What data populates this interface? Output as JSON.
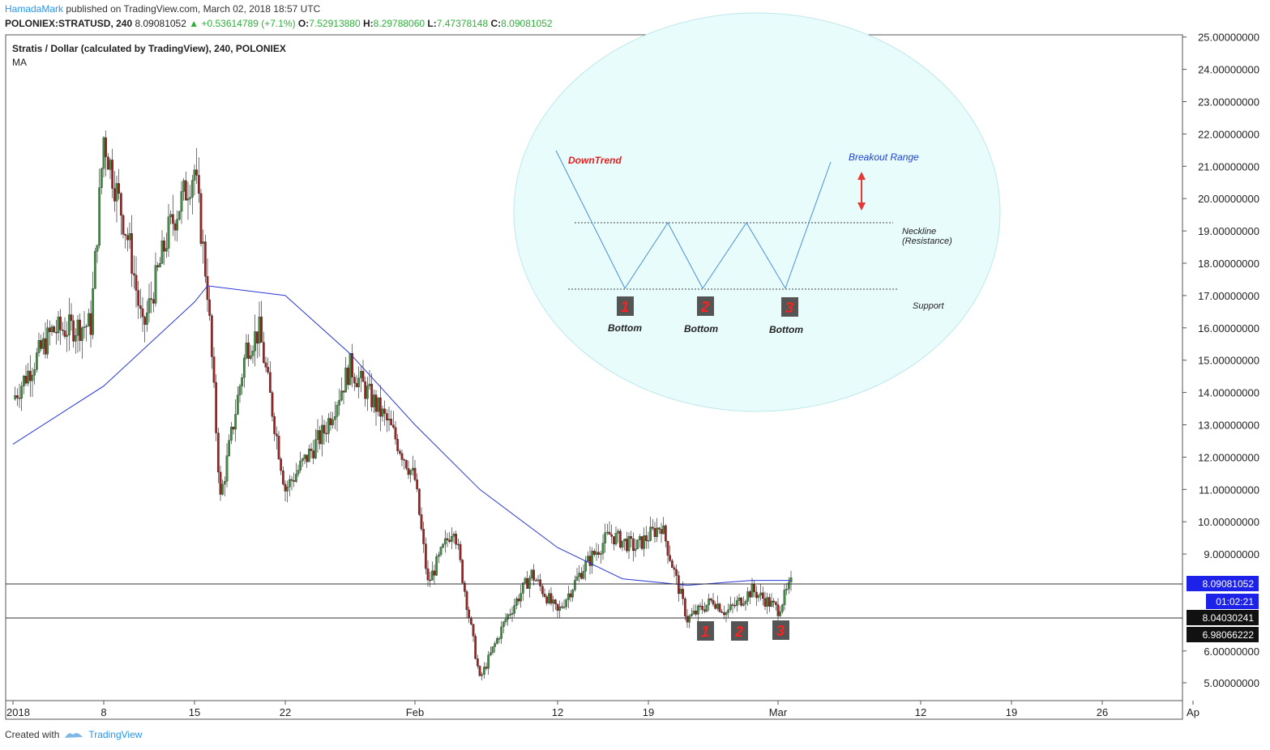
{
  "header": {
    "author": "HamadaMark",
    "published": " published on TradingView.com, March 02, 2018 18:57 UTC"
  },
  "quote": {
    "symbol": "POLONIEX:STRATUSD, 240",
    "last": "8.09081052",
    "change": "+0.53614789 (+7.1%)",
    "o_label": "O:",
    "o": "7.52913880",
    "h_label": "H:",
    "h": "8.29788060",
    "l_label": "L:",
    "l": "7.47378148",
    "c_label": "C:",
    "c": "8.09081052"
  },
  "footer": {
    "created_with": "Created with",
    "brand": "TradingView"
  },
  "chart_data": {
    "type": "candlestick",
    "title": "Stratis / Dollar (calculated by TradingView), 240, POLONIEX",
    "indicator": "MA",
    "ylim": [
      4.5,
      25.5
    ],
    "y_ticks": [
      "25.00000000",
      "24.00000000",
      "23.00000000",
      "22.00000000",
      "21.00000000",
      "20.00000000",
      "19.00000000",
      "18.00000000",
      "17.00000000",
      "16.00000000",
      "15.00000000",
      "14.00000000",
      "13.00000000",
      "12.00000000",
      "11.00000000",
      "10.00000000",
      "9.00000000",
      "6.00000000",
      "5.00000000"
    ],
    "x_ticks": [
      "2018",
      "8",
      "15",
      "22",
      "Feb",
      "12",
      "19",
      "Mar",
      "12",
      "19",
      "26",
      "Ap"
    ],
    "price_labels": {
      "last": "8.09081052",
      "countdown": "01:02:21",
      "level1": "8.04030241",
      "level2": "6.98066222"
    },
    "horizontal_lines": [
      8.09,
      7.04
    ],
    "keypoints": [
      {
        "date": "Jan 01",
        "close": 13.8
      },
      {
        "date": "Jan 04",
        "close": 15.9
      },
      {
        "date": "Jan 07",
        "close": 16.1
      },
      {
        "date": "Jan 08",
        "close": 21.9
      },
      {
        "date": "Jan 10",
        "close": 18.5
      },
      {
        "date": "Jan 11",
        "close": 15.9
      },
      {
        "date": "Jan 13",
        "close": 19.0
      },
      {
        "date": "Jan 15",
        "close": 20.9
      },
      {
        "date": "Jan 16",
        "close": 17.2
      },
      {
        "date": "Jan 17",
        "close": 10.7
      },
      {
        "date": "Jan 19",
        "close": 15.4
      },
      {
        "date": "Jan 20",
        "close": 15.9
      },
      {
        "date": "Jan 22",
        "close": 11.0
      },
      {
        "date": "Jan 25",
        "close": 12.8
      },
      {
        "date": "Jan 27",
        "close": 14.8
      },
      {
        "date": "Jan 30",
        "close": 13.0
      },
      {
        "date": "Feb 01",
        "close": 11.3
      },
      {
        "date": "Feb 02",
        "close": 8.1
      },
      {
        "date": "Feb 04",
        "close": 9.9
      },
      {
        "date": "Feb 06",
        "close": 5.1
      },
      {
        "date": "Feb 08",
        "close": 7.0
      },
      {
        "date": "Feb 10",
        "close": 8.4
      },
      {
        "date": "Feb 12",
        "close": 7.2
      },
      {
        "date": "Feb 14",
        "close": 8.6
      },
      {
        "date": "Feb 16",
        "close": 9.6
      },
      {
        "date": "Feb 18",
        "close": 9.2
      },
      {
        "date": "Feb 20",
        "close": 9.9
      },
      {
        "date": "Feb 22",
        "close": 7.0
      },
      {
        "date": "Feb 24",
        "close": 7.6
      },
      {
        "date": "Feb 25",
        "close": 7.2
      },
      {
        "date": "Feb 27",
        "close": 7.9
      },
      {
        "date": "Mar 01",
        "close": 7.3
      },
      {
        "date": "Mar 02",
        "close": 8.09
      }
    ],
    "moving_average": [
      {
        "date": "Jan 01",
        "value": 12.4
      },
      {
        "date": "Jan 08",
        "value": 14.2
      },
      {
        "date": "Jan 15",
        "value": 16.8
      },
      {
        "date": "Jan 16",
        "value": 17.3
      },
      {
        "date": "Jan 22",
        "value": 17.0
      },
      {
        "date": "Jan 27",
        "value": 15.2
      },
      {
        "date": "Feb 01",
        "value": 13.0
      },
      {
        "date": "Feb 06",
        "value": 11.0
      },
      {
        "date": "Feb 12",
        "value": 9.2
      },
      {
        "date": "Feb 17",
        "value": 8.25
      },
      {
        "date": "Feb 22",
        "value": 8.05
      },
      {
        "date": "Feb 27",
        "value": 8.2
      },
      {
        "date": "Mar 02",
        "value": 8.2
      }
    ],
    "annotations": {
      "downtrend": "DownTrend",
      "breakout": "Breakout Range",
      "neckline": "Neckline",
      "resistance": "(Resistance)",
      "support": "Support",
      "bottom_label": "Bottom",
      "numbers": [
        "1",
        "2",
        "3"
      ]
    }
  },
  "colors": {
    "up_candle": "#3d8f3d",
    "down_candle": "#a02020",
    "ma_line": "#2836d8",
    "bubble": "#e9fcfc",
    "pattern_line": "#4a90d9",
    "marker_box": "#555555",
    "marker_text": "#ff2020",
    "last_price_bg": "#1d22e8"
  }
}
